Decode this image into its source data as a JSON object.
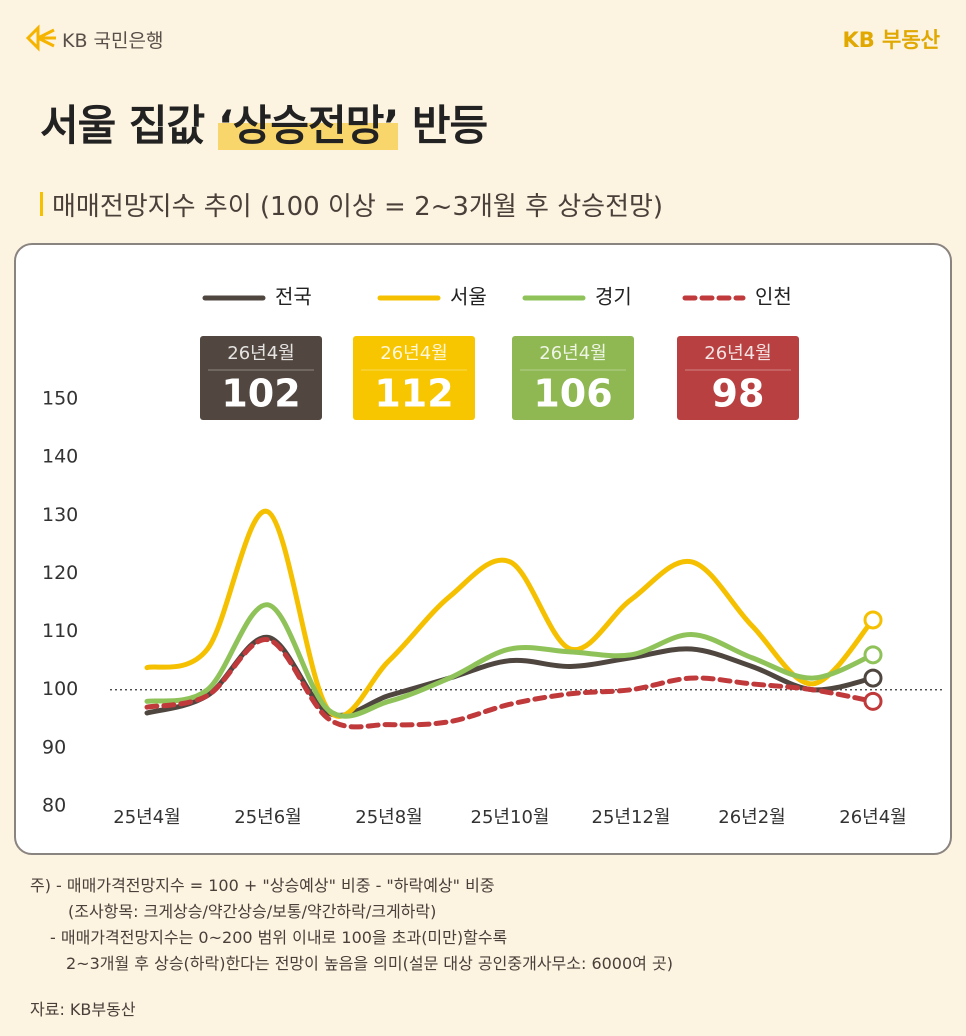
{
  "header": {
    "bank": "KB 국민은행",
    "brand": "KB 부동산",
    "title_start": "서울 집값 ",
    "title_highlight": "‘상승전망’",
    "title_end": " 반등"
  },
  "chart_data": {
    "type": "line",
    "subtitle": "매매전망지수 추이 (100 이상 = 2~3개월 후 상승전망)",
    "categories": [
      "25년4월",
      null,
      "25년6월",
      null,
      "25년8월",
      null,
      "25년10월",
      null,
      "25년12월",
      null,
      "26년2월",
      null,
      "26년4월"
    ],
    "series": [
      {
        "name": "전국",
        "color": "#4f4640",
        "badge_color": "#524740",
        "dashed": false,
        "values": [
          96,
          99,
          109,
          96,
          99,
          102,
          105,
          104,
          105.5,
          107,
          104,
          100,
          102
        ]
      },
      {
        "name": "서울",
        "color": "#f5c000",
        "badge_color": "#f7c600",
        "dashed": false,
        "values": [
          103.8,
          107,
          130.6,
          96.5,
          105,
          116,
          122,
          107,
          115.5,
          122,
          111,
          101,
          112
        ]
      },
      {
        "name": "경기",
        "color": "#8fc35a",
        "badge_color": "#8fb852",
        "dashed": false,
        "values": [
          98,
          100,
          114.6,
          96.5,
          98,
          102,
          107,
          106.5,
          106,
          109.5,
          105.5,
          102,
          106
        ]
      },
      {
        "name": "인천",
        "color": "#c0393b",
        "badge_color": "#b84040",
        "dashed": true,
        "values": [
          97,
          99,
          108.6,
          95,
          94,
          94.5,
          97.5,
          99.3,
          100,
          102,
          101,
          100,
          98
        ]
      }
    ],
    "ylim": [
      80,
      150
    ],
    "yticks": [
      80,
      90,
      100,
      110,
      120,
      130,
      140,
      150
    ],
    "reference_line": 100,
    "legend": "top",
    "grid": false
  },
  "notes": [
    "주) - 매매가격전망지수 = 100 + \"상승예상\" 비중 - \"하락예상\" 비중",
    "(조사항목: 크게상승/약간상승/보통/약간하락/크게하락)",
    "- 매매가격전망지수는 0~200 범위 이내로 100을 초과(미만)할수록",
    "2~3개월 후 상승(하락)한다는 전망이 높음을 의미(설문 대상 공인중개사무소: 6000여 곳)"
  ],
  "source": "자료: KB부동산"
}
